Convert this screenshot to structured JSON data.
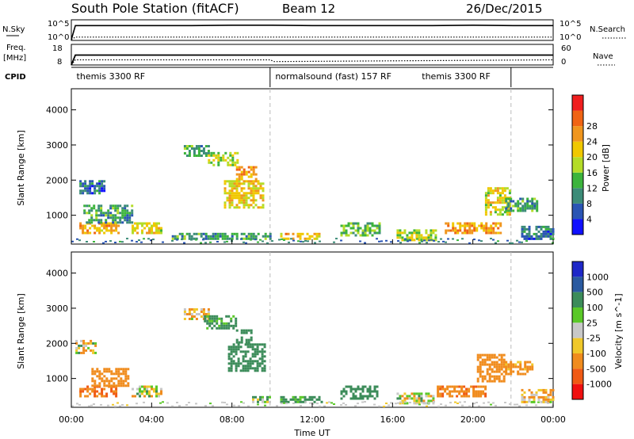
{
  "header": {
    "station": "South Pole Station (fitACF)",
    "beam": "Beam 12",
    "date": "26/Dec/2015"
  },
  "labels": {
    "nsky": "N.Sky",
    "nsearch": "N.Search",
    "freq_line1": "Freq.",
    "freq_line2": "[MHz]",
    "nave": "Nave",
    "cpid": "CPID",
    "nsky_top": "10^5",
    "nsky_bottom": "10^0",
    "nsearch_top": "10^5",
    "nsearch_bottom": "10^0",
    "freq_top": "18",
    "freq_bottom": "8",
    "nave_top": "60",
    "nave_bottom": "0",
    "xlabel": "Time UT"
  },
  "cpid_segments": [
    {
      "start_hour": 0,
      "end_hour": 9.9,
      "label": "themis 3300 RF",
      "label_hour": 0.1
    },
    {
      "start_hour": 9.9,
      "end_hour": 21.9,
      "label": "normalsound (fast) 157 RF",
      "label_hour": 10.0
    },
    {
      "start_hour": 9.9,
      "end_hour": 21.9,
      "label": "themis 3300 RF",
      "label_hour": 17.3
    }
  ],
  "colors": {
    "power": [
      "#1010ff",
      "#2a55b4",
      "#3c8c78",
      "#3cb43c",
      "#b4dc28",
      "#f0c800",
      "#f0961e",
      "#f06414",
      "#f01e1e"
    ],
    "velocity": [
      "#f01010",
      "#f05a14",
      "#f08c1e",
      "#f0c82a",
      "#c8c8c8",
      "#5ac828",
      "#3c8c5a",
      "#2a5aa0",
      "#1e28c8"
    ],
    "dashed_line": "#bbbbbb",
    "line": "#000000"
  },
  "chart_data": [
    {
      "type": "line",
      "title": "N.Sky / N.Search",
      "x_range_hours": [
        0,
        24
      ],
      "series": [
        {
          "name": "N.Sky",
          "style": "solid",
          "x": [
            0,
            0.2,
            2,
            4,
            6,
            8,
            10,
            12,
            14,
            16,
            18,
            20,
            22,
            24
          ],
          "y_log10": [
            0.2,
            3.6,
            3.6,
            3.6,
            3.6,
            3.7,
            3.7,
            3.6,
            3.6,
            3.6,
            3.6,
            3.7,
            3.6,
            3.6
          ]
        },
        {
          "name": "N.Search",
          "style": "dotted",
          "x": [
            0,
            0.2,
            4,
            8,
            12,
            16,
            20,
            24
          ],
          "y_log10": [
            0.2,
            0.8,
            0.8,
            0.8,
            0.8,
            0.8,
            0.8,
            0.8
          ]
        }
      ]
    },
    {
      "type": "line",
      "title": "Freq. / Nave",
      "x_range_hours": [
        0,
        24
      ],
      "series": [
        {
          "name": "Freq. [MHz]",
          "style": "solid",
          "x": [
            0,
            0.2,
            24
          ],
          "y": [
            8,
            12.8,
            12.8
          ]
        },
        {
          "name": "Nave",
          "style": "dotted",
          "x": [
            0,
            0.2,
            9.9,
            10.1,
            24
          ],
          "y": [
            0,
            15,
            15,
            10,
            15
          ]
        }
      ]
    },
    {
      "type": "heatmap",
      "title": "Power",
      "xlabel": "Time UT",
      "ylabel": "Slant Range [km]",
      "colorbar_label": "Power [dB]",
      "colorbar_ticks": [
        4,
        8,
        12,
        16,
        20,
        24,
        28
      ],
      "xlim": [
        0,
        24
      ],
      "ylim": [
        180,
        4600
      ],
      "xticks": [
        "00:00",
        "04:00",
        "08:00",
        "12:00",
        "16:00",
        "20:00",
        "00:00"
      ],
      "yticks": [
        1000,
        2000,
        3000,
        4000
      ],
      "x_tick_hours": [
        0,
        4,
        8,
        12,
        16,
        20,
        24
      ],
      "regions": [
        {
          "t0": 0.4,
          "t1": 1.6,
          "r0": 1600,
          "r1": 2000,
          "v": 8
        },
        {
          "t0": 0.4,
          "t1": 2.3,
          "r0": 500,
          "r1": 800,
          "v": 24
        },
        {
          "t0": 0.6,
          "t1": 3.0,
          "r0": 800,
          "r1": 1300,
          "v": 12
        },
        {
          "t0": 3.0,
          "t1": 4.5,
          "r0": 500,
          "r1": 800,
          "v": 20
        },
        {
          "t0": 5.6,
          "t1": 6.8,
          "r0": 2700,
          "r1": 3000,
          "v": 12
        },
        {
          "t0": 6.8,
          "t1": 8.3,
          "r0": 2400,
          "r1": 2800,
          "v": 18
        },
        {
          "t0": 7.6,
          "t1": 9.6,
          "r0": 1200,
          "r1": 2000,
          "v": 22
        },
        {
          "t0": 8.2,
          "t1": 9.2,
          "r0": 2000,
          "r1": 2400,
          "v": 26
        },
        {
          "t0": 5.0,
          "t1": 9.9,
          "r0": 300,
          "r1": 500,
          "v": 12
        },
        {
          "t0": 10.4,
          "t1": 12.5,
          "r0": 300,
          "r1": 500,
          "v": 24
        },
        {
          "t0": 13.4,
          "t1": 15.4,
          "r0": 400,
          "r1": 800,
          "v": 14
        },
        {
          "t0": 16.2,
          "t1": 18.2,
          "r0": 300,
          "r1": 600,
          "v": 18
        },
        {
          "t0": 18.6,
          "t1": 21.4,
          "r0": 500,
          "r1": 800,
          "v": 26
        },
        {
          "t0": 20.6,
          "t1": 21.8,
          "r0": 1000,
          "r1": 1800,
          "v": 20
        },
        {
          "t0": 21.6,
          "t1": 23.2,
          "r0": 1100,
          "r1": 1500,
          "v": 12
        },
        {
          "t0": 22.4,
          "t1": 24.0,
          "r0": 300,
          "r1": 700,
          "v": 8
        }
      ]
    },
    {
      "type": "heatmap",
      "title": "Velocity",
      "xlabel": "Time UT",
      "ylabel": "Slant Range [km]",
      "colorbar_label": "Velocity [m s^-1]",
      "colorbar_ticks": [
        "1000",
        "500",
        "100",
        "25",
        "-25",
        "-100",
        "-500",
        "-1000"
      ],
      "xlim": [
        0,
        24
      ],
      "ylim": [
        180,
        4600
      ],
      "xticks": [
        "00:00",
        "04:00",
        "08:00",
        "12:00",
        "16:00",
        "20:00",
        "00:00"
      ],
      "yticks": [
        1000,
        2000,
        3000,
        4000
      ],
      "x_tick_hours": [
        0,
        4,
        8,
        12,
        16,
        20,
        24
      ],
      "regions": [
        {
          "t0": 0.2,
          "t1": 1.2,
          "r0": 1700,
          "r1": 2100,
          "v": 0
        },
        {
          "t0": 0.4,
          "t1": 2.2,
          "r0": 500,
          "r1": 800,
          "v": -500
        },
        {
          "t0": 1.0,
          "t1": 2.8,
          "r0": 800,
          "r1": 1300,
          "v": -300
        },
        {
          "t0": 3.0,
          "t1": 4.5,
          "r0": 500,
          "r1": 800,
          "v": 0
        },
        {
          "t0": 5.6,
          "t1": 6.8,
          "r0": 2700,
          "r1": 3000,
          "v": -100
        },
        {
          "t0": 6.6,
          "t1": 8.2,
          "r0": 2400,
          "r1": 2800,
          "v": 200
        },
        {
          "t0": 7.8,
          "t1": 9.6,
          "r0": 1200,
          "r1": 2000,
          "v": 300
        },
        {
          "t0": 8.2,
          "t1": 9.0,
          "r0": 2000,
          "r1": 2400,
          "v": 300
        },
        {
          "t0": 9.0,
          "t1": 9.9,
          "r0": 300,
          "r1": 500,
          "v": 60
        },
        {
          "t0": 10.4,
          "t1": 12.5,
          "r0": 300,
          "r1": 500,
          "v": 200
        },
        {
          "t0": 13.4,
          "t1": 15.2,
          "r0": 400,
          "r1": 800,
          "v": 300
        },
        {
          "t0": 16.2,
          "t1": 18.0,
          "r0": 300,
          "r1": 600,
          "v": 0
        },
        {
          "t0": 18.2,
          "t1": 20.6,
          "r0": 500,
          "r1": 800,
          "v": -400
        },
        {
          "t0": 20.2,
          "t1": 21.6,
          "r0": 900,
          "r1": 1700,
          "v": -300
        },
        {
          "t0": 21.6,
          "t1": 23.0,
          "r0": 1100,
          "r1": 1500,
          "v": -200
        },
        {
          "t0": 22.4,
          "t1": 24.0,
          "r0": 300,
          "r1": 700,
          "v": -100
        }
      ]
    }
  ]
}
